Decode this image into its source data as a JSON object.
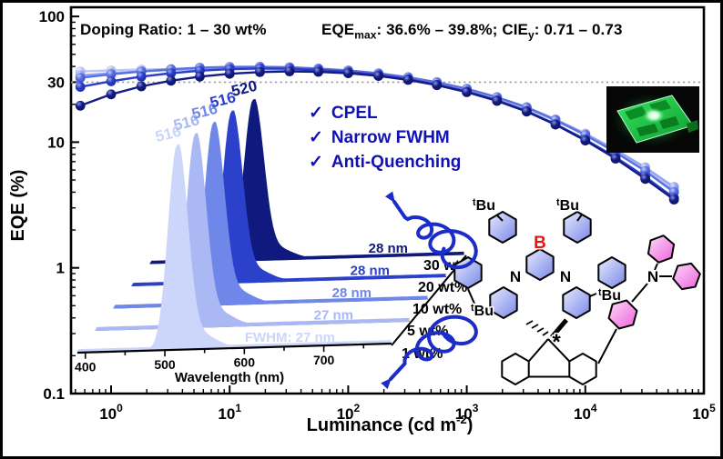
{
  "annotations": {
    "doping_note": "Doping Ratio: 1 – 30 wt%",
    "perf_note": {
      "eqe": "EQE",
      "eqe_sub": "max",
      "eqe_val": ": 36.6% – 39.8%; ",
      "cie": "CIE",
      "cie_sub": "y",
      "cie_val": ": 0.71 – 0.73"
    },
    "checklist": [
      {
        "icon": "✓",
        "label": "CPEL"
      },
      {
        "icon": "✓",
        "label": "Narrow FWHM"
      },
      {
        "icon": "✓",
        "label": "Anti-Quenching"
      }
    ],
    "accent_color": "#1212b2"
  },
  "chart_data": [
    {
      "type": "line",
      "title": "",
      "xlabel": {
        "pre": "Luminance (cd m",
        "sup": "-2",
        "post": ")"
      },
      "ylabel": "EQE (%)",
      "xscale": "log",
      "yscale": "log",
      "xlim": [
        0.46,
        100000
      ],
      "ylim": [
        0.1,
        118
      ],
      "xticks": [
        {
          "base": "10",
          "exp": "0",
          "value": 1
        },
        {
          "base": "10",
          "exp": "1",
          "value": 10
        },
        {
          "base": "10",
          "exp": "2",
          "value": 100
        },
        {
          "base": "10",
          "exp": "3",
          "value": 1000
        },
        {
          "base": "10",
          "exp": "4",
          "value": 10000
        },
        {
          "base": "10",
          "exp": "5",
          "value": 100000
        }
      ],
      "yticks": [
        {
          "label": "100",
          "value": 100
        },
        {
          "label": "30",
          "value": 30
        },
        {
          "label": "10",
          "value": 10
        },
        {
          "label": "1",
          "value": 1
        },
        {
          "label": "0.1",
          "value": 0.1
        }
      ],
      "reference_line": {
        "value": 30,
        "axis": "y",
        "style": "dotted",
        "color": "#999999"
      },
      "luminance": [
        0.55,
        1,
        1.8,
        3.2,
        5.6,
        10,
        18,
        32,
        56,
        100,
        180,
        320,
        560,
        1000,
        1800,
        3200,
        5600,
        10000,
        18000,
        32000,
        56000
      ],
      "series": [
        {
          "name": "1 wt%",
          "line_color": "#bcc6f6",
          "marker_light": "#eef1fe",
          "marker_dark": "#9fabef",
          "eqe": [
            36.5,
            37.2,
            37.8,
            38.1,
            38.2,
            38.2,
            38.0,
            37.5,
            36.7,
            35.6,
            34.0,
            31.8,
            29.1,
            25.9,
            22.3,
            18.5,
            14.8,
            11.4,
            8.4,
            6.0,
            4.2
          ]
        },
        {
          "name": "5 wt%",
          "line_color": "#94a5f0",
          "marker_light": "#dfe6fc",
          "marker_dark": "#7e90ea",
          "eqe": [
            34.0,
            35.4,
            36.6,
            37.5,
            38.2,
            38.6,
            38.6,
            38.3,
            37.5,
            36.3,
            34.6,
            32.4,
            29.6,
            26.4,
            22.8,
            19.0,
            15.2,
            11.7,
            8.7,
            6.3,
            4.4
          ]
        },
        {
          "name": "10 wt%",
          "line_color": "#5a70e0",
          "marker_light": "#c3cdf8",
          "marker_dark": "#3a50cc",
          "eqe": [
            32.5,
            34.6,
            36.5,
            38.0,
            39.1,
            39.7,
            39.8,
            39.4,
            38.5,
            37.2,
            35.3,
            32.9,
            30.0,
            26.6,
            22.8,
            18.9,
            15.0,
            11.4,
            8.3,
            5.9,
            4.0
          ]
        },
        {
          "name": "20 wt%",
          "line_color": "#2a3ec6",
          "marker_light": "#9aa8f0",
          "marker_dark": "#1b2cae",
          "eqe": [
            27.5,
            30.5,
            33.2,
            35.4,
            37.0,
            38.1,
            38.6,
            38.4,
            37.6,
            36.2,
            34.2,
            31.7,
            28.7,
            25.3,
            21.6,
            17.7,
            13.9,
            10.5,
            7.6,
            5.3,
            3.6
          ]
        },
        {
          "name": "30 wt%",
          "line_color": "#141c86",
          "marker_light": "#8a94e0",
          "marker_dark": "#0c1260",
          "eqe": [
            19.5,
            24.0,
            27.8,
            30.8,
            33.2,
            35.0,
            36.1,
            36.6,
            36.3,
            35.3,
            33.6,
            31.3,
            28.4,
            25.0,
            21.3,
            17.5,
            13.8,
            10.3,
            7.4,
            5.1,
            3.5
          ]
        }
      ]
    },
    {
      "type": "area",
      "style": "3d-waterfall",
      "xlabel": "Wavelength (nm)",
      "xlim": [
        390,
        785
      ],
      "xticks": [
        {
          "label": "400",
          "value": 400
        },
        {
          "label": "500",
          "value": 500
        },
        {
          "label": "600",
          "value": 600
        },
        {
          "label": "700",
          "value": 700
        }
      ],
      "series": [
        {
          "name": "1 wt%",
          "peak_nm": 516,
          "peak_label": "516",
          "fwhm_nm": 27,
          "fwhm_label": "FWHM: 27 nm",
          "color": "#ccd5fa"
        },
        {
          "name": "5 wt%",
          "peak_nm": 516,
          "peak_label": "516",
          "fwhm_nm": 27,
          "fwhm_label": "27 nm",
          "color": "#aab9f4"
        },
        {
          "name": "10 wt%",
          "peak_nm": 516,
          "peak_label": "516",
          "fwhm_nm": 28,
          "fwhm_label": "28 nm",
          "color": "#7087ea"
        },
        {
          "name": "20 wt%",
          "peak_nm": 516,
          "peak_label": "516",
          "fwhm_nm": 28,
          "fwhm_label": "28 nm",
          "color": "#2b41cc"
        },
        {
          "name": "30 wt%",
          "peak_nm": 520,
          "peak_label": "520",
          "fwhm_nm": 28,
          "fwhm_label": "28 nm",
          "color": "#101a7e"
        }
      ]
    }
  ],
  "molecule": {
    "boron": "B",
    "boron_color": "#ee1111",
    "nitrogen": "N",
    "tbu_sup": "t",
    "tbu_base": "Bu",
    "chiral_mark": "*"
  }
}
